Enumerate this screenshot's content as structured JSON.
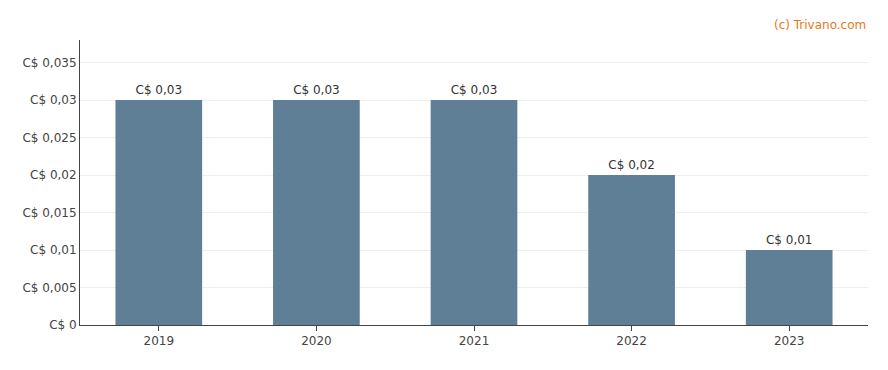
{
  "chart_data": {
    "type": "bar",
    "categories": [
      "2019",
      "2020",
      "2021",
      "2022",
      "2023"
    ],
    "values": [
      0.03,
      0.03,
      0.03,
      0.02,
      0.01
    ],
    "value_labels": [
      "C$ 0,03",
      "C$ 0,03",
      "C$ 0,03",
      "C$ 0,02",
      "C$ 0,01"
    ],
    "data_labels": true,
    "color": "#5f7f96",
    "ylim": [
      0,
      0.038
    ],
    "yticks": [
      {
        "value": 0,
        "label": "C$ 0"
      },
      {
        "value": 0.005,
        "label": "C$ 0,005"
      },
      {
        "value": 0.01,
        "label": "C$ 0,01"
      },
      {
        "value": 0.015,
        "label": "C$ 0,015"
      },
      {
        "value": 0.02,
        "label": "C$ 0,02"
      },
      {
        "value": 0.025,
        "label": "C$ 0,025"
      },
      {
        "value": 0.03,
        "label": "C$ 0,03"
      },
      {
        "value": 0.035,
        "label": "C$ 0,035"
      }
    ],
    "grid": true,
    "annotations": [
      {
        "text": "(c) Trivano.com",
        "color": "#e87722"
      }
    ]
  }
}
